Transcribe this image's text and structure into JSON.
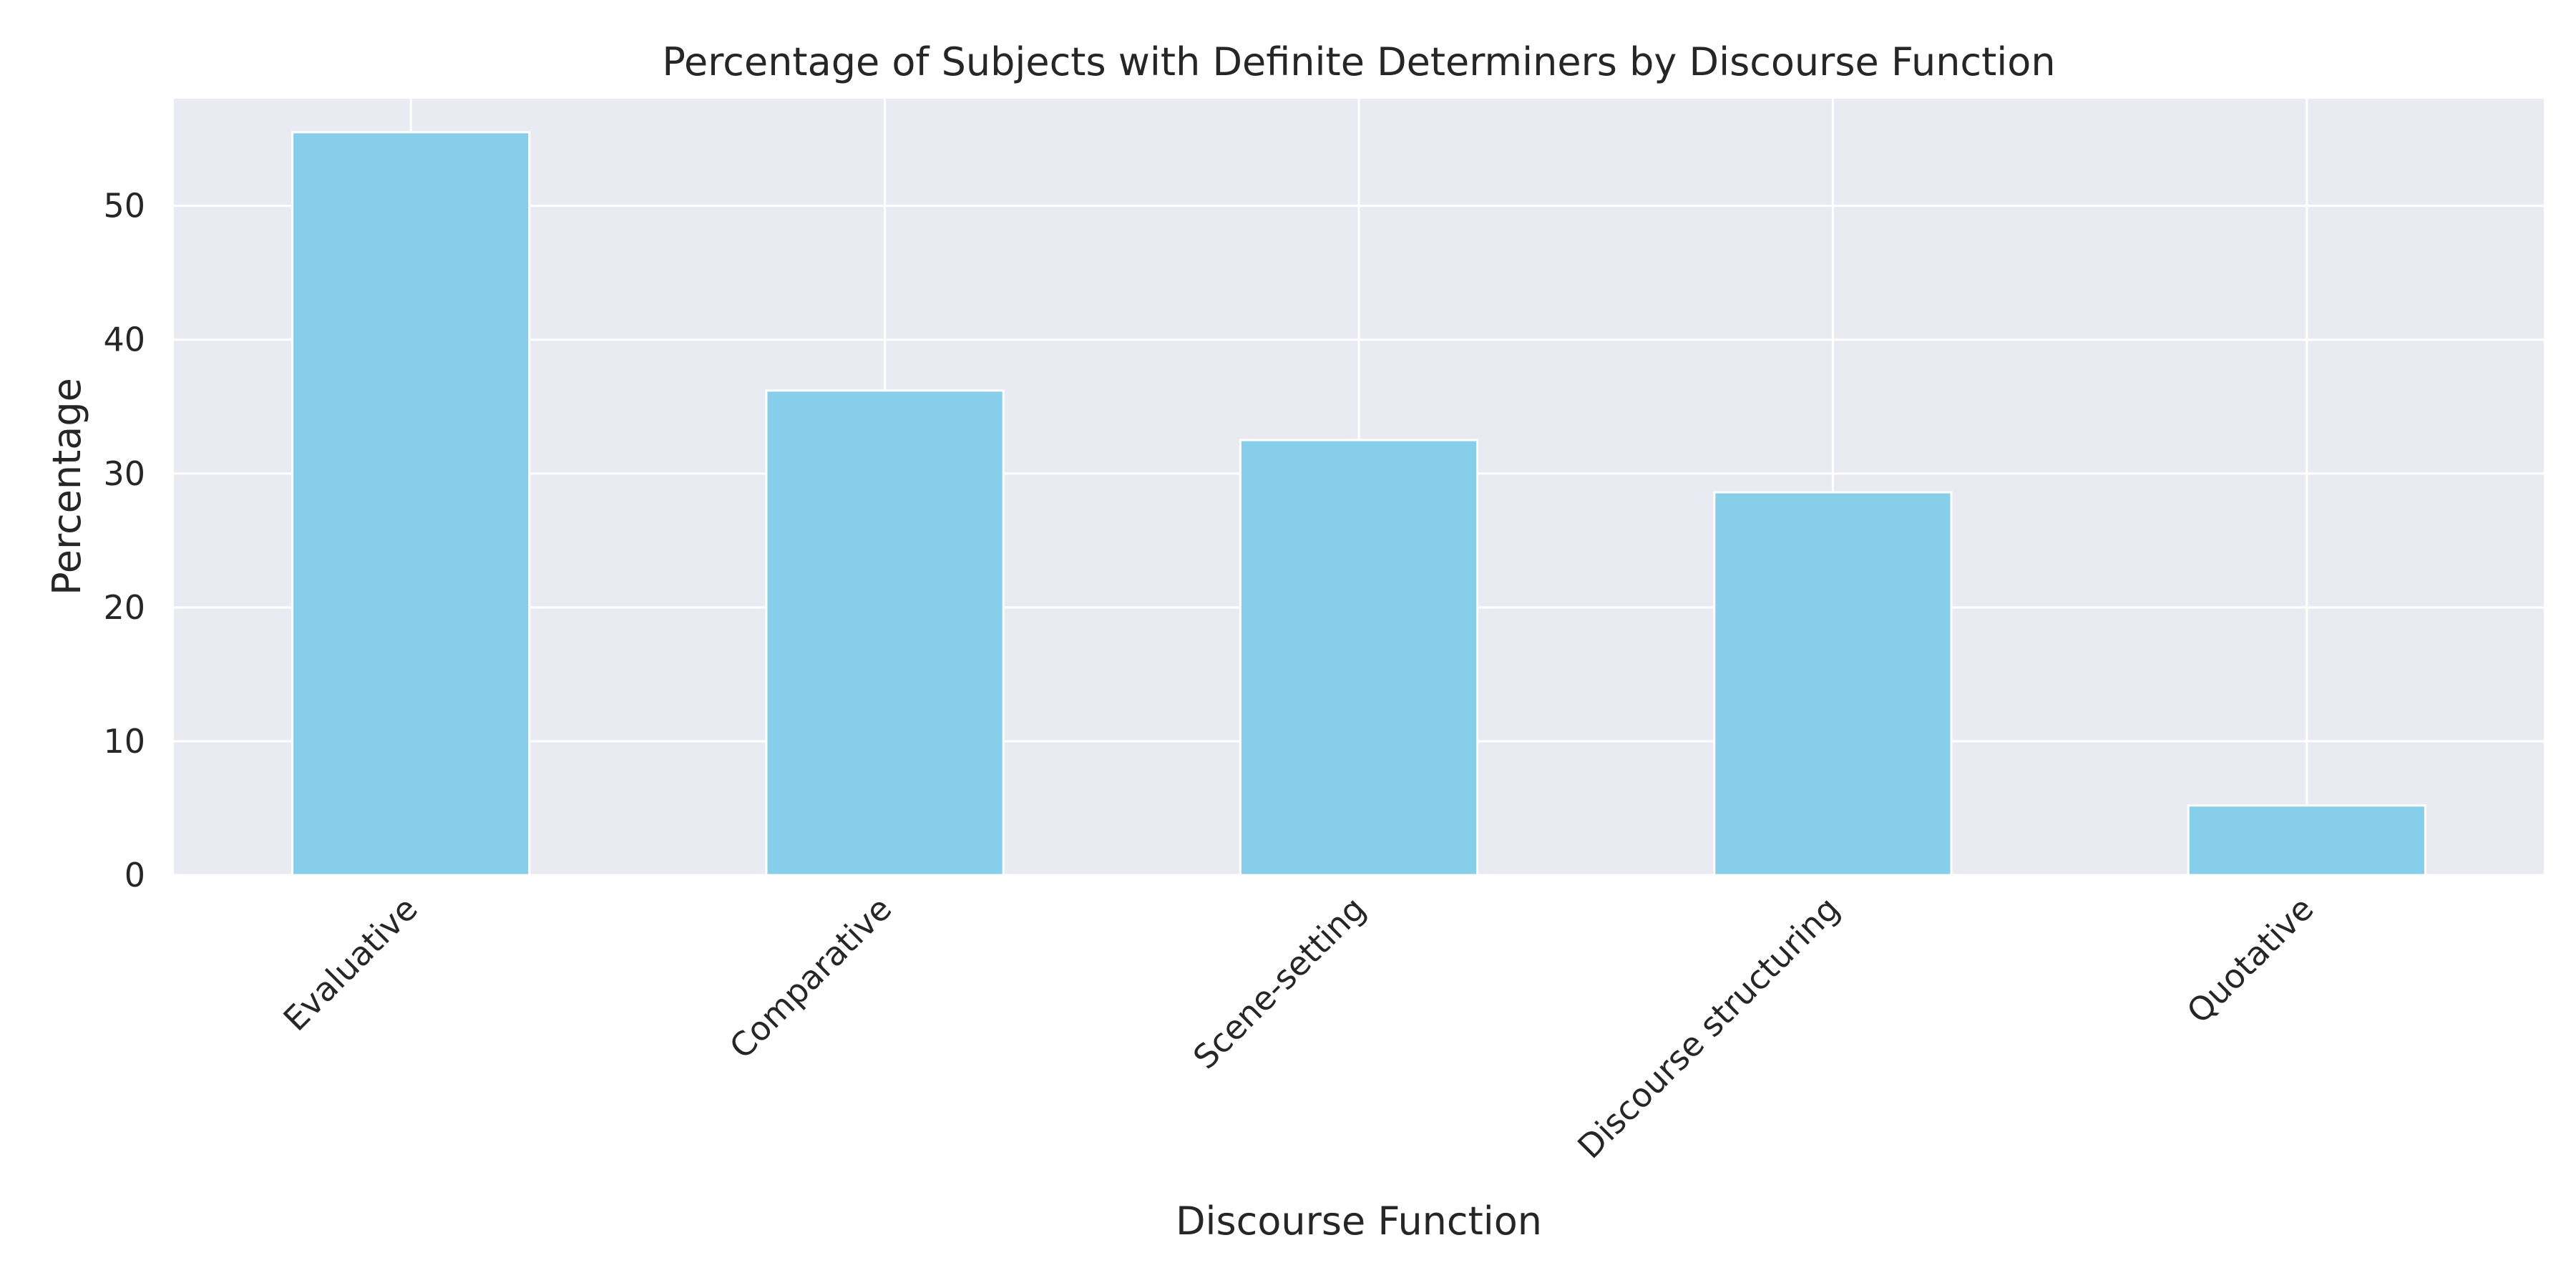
{
  "chart_data": {
    "type": "bar",
    "title": "Percentage of Subjects with Definite Determiners by Discourse Function",
    "xlabel": "Discourse Function",
    "ylabel": "Percentage",
    "categories": [
      "Evaluative",
      "Comparative",
      "Scene-setting",
      "Discourse structuring",
      "Quotative"
    ],
    "values": [
      55.5,
      36.2,
      32.5,
      28.6,
      5.2
    ],
    "ylim": [
      0,
      58
    ],
    "yticks": [
      0,
      10,
      20,
      30,
      40,
      50
    ],
    "grid": true,
    "legend": "none",
    "colors": {
      "bar": "#87ceeb",
      "bar_edge": "#ffffff",
      "plot_background": "#eaeaf2",
      "grid": "#ffffff",
      "text": "#262626"
    }
  }
}
